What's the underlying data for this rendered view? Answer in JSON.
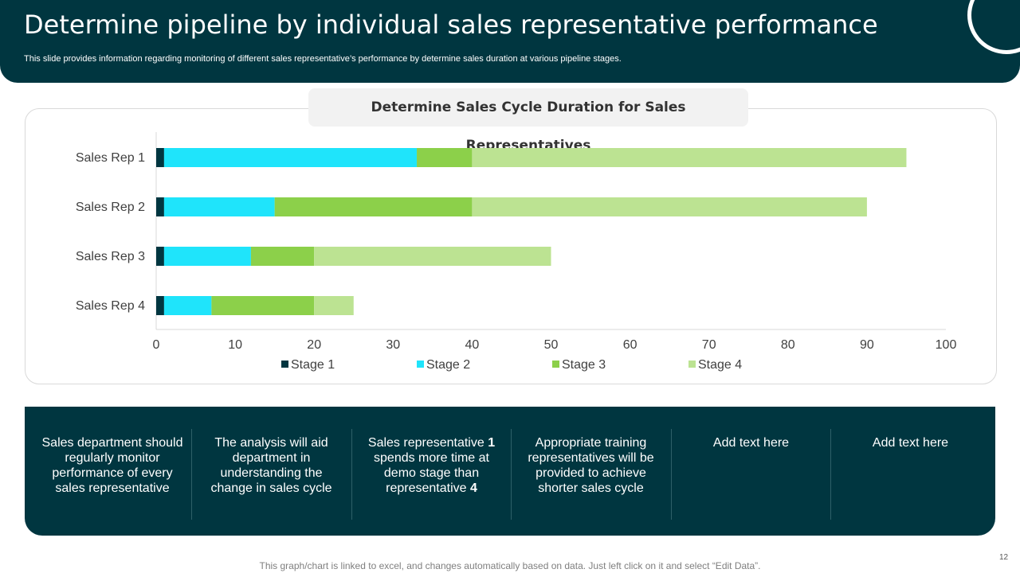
{
  "header": {
    "title": "Determine pipeline by individual sales representative performance",
    "subtitle": "This slide provides information regarding monitoring of different sales representative’s performance by determine sales duration at various pipeline stages."
  },
  "chart_title": "Determine Sales Cycle Duration for Sales Representatives",
  "chart_data": {
    "type": "bar",
    "orientation": "horizontal",
    "stacked": true,
    "title": "Determine Sales Cycle Duration for Sales Representatives",
    "categories": [
      "Sales Rep 1",
      "Sales Rep 2",
      "Sales Rep 3",
      "Sales Rep 4"
    ],
    "series": [
      {
        "name": "Stage 1",
        "color": "#003640",
        "values": [
          1,
          1,
          1,
          1
        ]
      },
      {
        "name": "Stage 2",
        "color": "#1fe4fb",
        "values": [
          32,
          14,
          11,
          6
        ]
      },
      {
        "name": "Stage 3",
        "color": "#8cd04a",
        "values": [
          7,
          25,
          8,
          13
        ]
      },
      {
        "name": "Stage 4",
        "color": "#bce392",
        "values": [
          55,
          50,
          30,
          5
        ]
      }
    ],
    "xlim": [
      0,
      100
    ],
    "xticks": [
      0,
      10,
      20,
      30,
      40,
      50,
      60,
      70,
      80,
      90,
      100
    ],
    "xlabel": "",
    "ylabel": "",
    "legend_position": "bottom",
    "grid": false
  },
  "panel": {
    "col1": "Sales department should regularly monitor performance of every sales representative",
    "col2": "The analysis will aid department in understanding the change in sales cycle",
    "col3_a": "Sales representative ",
    "col3_b": "1",
    "col3_c": " spends more time at demo stage than representative ",
    "col3_d": "4",
    "col4": "Appropriate training representatives will be provided to achieve shorter sales cycle",
    "col5": "Add text here",
    "col6": "Add text here"
  },
  "footer_note": "This graph/chart is linked to excel, and changes automatically based on data. Just left click on it and select “Edit Data”.",
  "page_number": "12"
}
